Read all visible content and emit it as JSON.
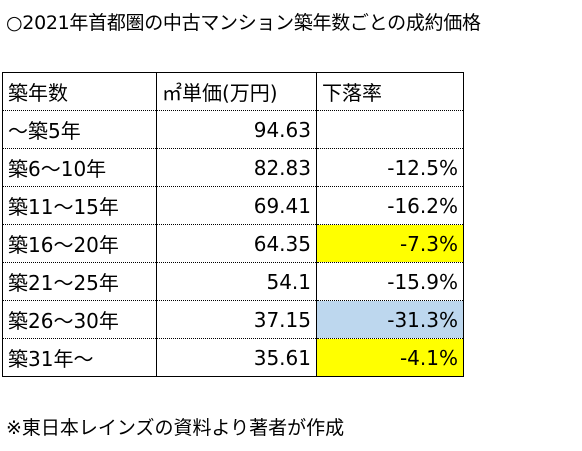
{
  "title": "○2021年首都圏の中古マンション築年数ごとの成約価格",
  "colors": {
    "highlight_yellow": "#ffff00",
    "highlight_blue": "#bdd7ee"
  },
  "table": {
    "headers": [
      "築年数",
      "㎡単価(万円)",
      "下落率"
    ],
    "rows": [
      {
        "age": "～築5年",
        "price": "94.63",
        "change": "",
        "highlight": ""
      },
      {
        "age": "築6～10年",
        "price": "82.83",
        "change": "-12.5%",
        "highlight": ""
      },
      {
        "age": "築11～15年",
        "price": "69.41",
        "change": "-16.2%",
        "highlight": ""
      },
      {
        "age": "築16～20年",
        "price": "64.35",
        "change": "-7.3%",
        "highlight": "yellow"
      },
      {
        "age": "築21～25年",
        "price": "54.1",
        "change": "-15.9%",
        "highlight": ""
      },
      {
        "age": "築26～30年",
        "price": "37.15",
        "change": "-31.3%",
        "highlight": "blue"
      },
      {
        "age": "築31年～",
        "price": "35.61",
        "change": "-4.1%",
        "highlight": "yellow"
      }
    ]
  },
  "note": "※東日本レインズの資料より著者が作成"
}
